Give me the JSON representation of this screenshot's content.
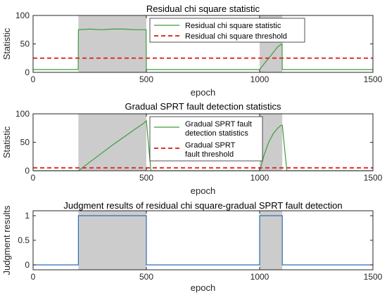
{
  "chart_data": [
    {
      "type": "line",
      "title": "Residual chi square statistic",
      "xlabel": "epoch",
      "ylabel": "Statistic",
      "xlim": [
        0,
        1500
      ],
      "ylim": [
        0,
        100
      ],
      "xticks": [
        "0",
        "500",
        "1000",
        "1500"
      ],
      "yticks": [
        "0",
        "50",
        "100"
      ],
      "shaded_regions": [
        [
          200,
          500
        ],
        [
          1000,
          1100
        ]
      ],
      "legend_position": "top-right",
      "series": [
        {
          "name": "Residual chi square statistic",
          "color": "#3a9e3a",
          "style": "solid",
          "x": [
            0,
            199,
            200,
            250,
            300,
            350,
            400,
            450,
            499,
            500,
            550,
            600,
            700,
            800,
            900,
            1000,
            1020,
            1040,
            1060,
            1080,
            1099,
            1100,
            1200,
            1300,
            1400,
            1500
          ],
          "y": [
            5,
            5,
            75,
            76,
            75,
            76,
            76,
            75,
            75,
            5,
            5,
            5,
            5,
            5,
            5,
            5,
            15,
            25,
            35,
            45,
            50,
            5,
            5,
            5,
            5,
            5
          ]
        },
        {
          "name": "Residual chi square threshold",
          "color": "#e03030",
          "style": "dashed",
          "x": [
            0,
            1500
          ],
          "y": [
            25,
            25
          ]
        }
      ]
    },
    {
      "type": "line",
      "title": "Gradual SPRT fault detection statistics",
      "xlabel": "epoch",
      "ylabel": "Statistic",
      "xlim": [
        0,
        1500
      ],
      "ylim": [
        0,
        100
      ],
      "xticks": [
        "0",
        "500",
        "1000",
        "1500"
      ],
      "yticks": [
        "0",
        "50",
        "100"
      ],
      "shaded_regions": [
        [
          200,
          500
        ],
        [
          1000,
          1100
        ]
      ],
      "legend_position": "top-right",
      "series": [
        {
          "name": "Gradual SPRT fault detection statistics",
          "color": "#3a9e3a",
          "style": "solid",
          "x": [
            0,
            200,
            250,
            300,
            350,
            400,
            450,
            490,
            500,
            510,
            520,
            1000,
            1020,
            1040,
            1060,
            1080,
            1095,
            1100,
            1110,
            1120,
            1500
          ],
          "y": [
            0,
            0,
            15,
            30,
            45,
            59,
            73,
            84,
            88,
            45,
            0,
            0,
            28,
            50,
            65,
            75,
            80,
            80,
            40,
            0,
            0
          ]
        },
        {
          "name": "Gradual SPRT fault threshold",
          "color": "#e03030",
          "style": "dashed",
          "x": [
            0,
            1500
          ],
          "y": [
            5,
            5
          ]
        }
      ]
    },
    {
      "type": "line",
      "title": "Judgment results of residual chi square-gradual SPRT fault detection",
      "xlabel": "epoch",
      "ylabel": "Judgment results",
      "xlim": [
        0,
        1500
      ],
      "ylim": [
        -0.1,
        1.1
      ],
      "xticks": [
        "0",
        "500",
        "1000",
        "1500"
      ],
      "yticks": [
        "0",
        "0.5",
        "1"
      ],
      "shaded_regions": [
        [
          200,
          500
        ],
        [
          1000,
          1100
        ]
      ],
      "series": [
        {
          "color": "#2f6db5",
          "style": "solid",
          "x": [
            0,
            200,
            200,
            500,
            500,
            1000,
            1000,
            1100,
            1100,
            1500
          ],
          "y": [
            0,
            0,
            1,
            1,
            0,
            0,
            1,
            1,
            0,
            0
          ]
        }
      ]
    }
  ]
}
